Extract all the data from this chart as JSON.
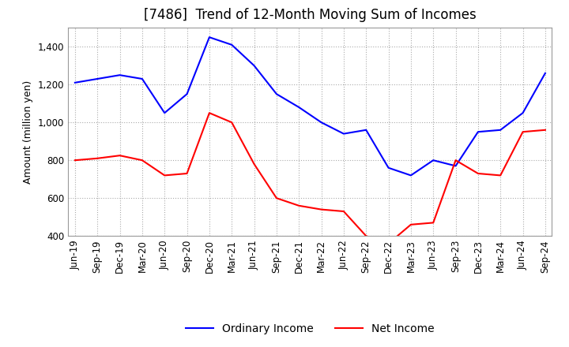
{
  "title": "[7486]  Trend of 12-Month Moving Sum of Incomes",
  "ylabel": "Amount (million yen)",
  "ylim": [
    400,
    1500
  ],
  "yticks": [
    400,
    600,
    800,
    1000,
    1200,
    1400
  ],
  "x_labels": [
    "Jun-19",
    "Sep-19",
    "Dec-19",
    "Mar-20",
    "Jun-20",
    "Sep-20",
    "Dec-20",
    "Mar-21",
    "Jun-21",
    "Sep-21",
    "Dec-21",
    "Mar-22",
    "Jun-22",
    "Sep-22",
    "Dec-22",
    "Mar-23",
    "Jun-23",
    "Sep-23",
    "Dec-23",
    "Mar-24",
    "Jun-24",
    "Sep-24"
  ],
  "ordinary_income": [
    1210,
    1230,
    1250,
    1230,
    1050,
    1150,
    1450,
    1410,
    1300,
    1150,
    1080,
    1000,
    940,
    960,
    760,
    720,
    800,
    770,
    950,
    960,
    1050,
    1260
  ],
  "net_income": [
    800,
    810,
    825,
    800,
    720,
    730,
    1050,
    1000,
    780,
    600,
    560,
    540,
    530,
    400,
    360,
    460,
    470,
    800,
    730,
    720,
    950,
    960
  ],
  "ordinary_color": "#0000ff",
  "net_color": "#ff0000",
  "background_color": "#ffffff",
  "grid_color": "#aaaaaa",
  "title_fontsize": 12,
  "legend_fontsize": 10,
  "tick_fontsize": 8.5
}
